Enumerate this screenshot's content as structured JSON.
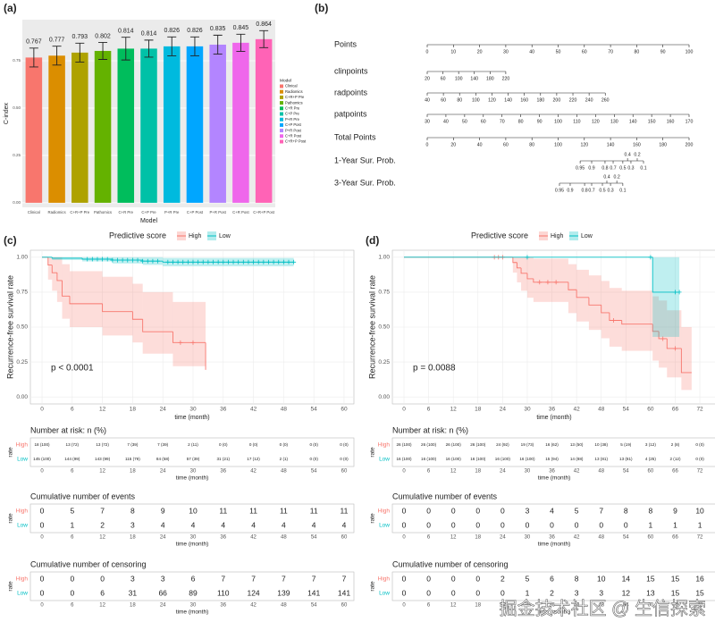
{
  "chart_data": [
    {
      "type": "bar",
      "label": "(a)",
      "xlabel": "Model",
      "ylabel": "C-index",
      "legend_title": "Model",
      "categories": [
        "Clinical",
        "Radiomics",
        "C+R+P Pre",
        "Pathomics",
        "C+R Pre",
        "C+P Pre",
        "P+R Pre",
        "C+P Post",
        "P+R Post",
        "C+R Post",
        "C+R+P Post"
      ],
      "values": [
        0.767,
        0.777,
        0.793,
        0.802,
        0.814,
        0.814,
        0.826,
        0.826,
        0.835,
        0.845,
        0.864
      ],
      "errors": [
        0.05,
        0.05,
        0.05,
        0.045,
        0.06,
        0.045,
        0.05,
        0.05,
        0.05,
        0.045,
        0.045
      ],
      "colors": [
        "#F8766D",
        "#DB8E00",
        "#AEA200",
        "#64B200",
        "#00BD5C",
        "#00C1A7",
        "#00BADE",
        "#00A6FF",
        "#B385FF",
        "#EF67EB",
        "#FF63B6"
      ],
      "ylim": [
        -0.024,
        0.967
      ],
      "yticks": [
        {
          "value": 0,
          "label": "0.00"
        },
        0.25,
        {
          "value": 0.5,
          "label": "0.50"
        },
        0.75
      ]
    },
    {
      "type": "nomogram",
      "label": "(b)",
      "rows": [
        {
          "name": "Points",
          "ticks": [
            0,
            10,
            20,
            30,
            40,
            50,
            60,
            70,
            80,
            90,
            100
          ]
        },
        {
          "name": "clinpoints",
          "ticks": [
            20,
            60,
            100,
            140,
            180,
            220
          ],
          "at": [
            0,
            6,
            12,
            18,
            24,
            30
          ]
        },
        {
          "name": "radpoints",
          "ticks": [
            40,
            60,
            80,
            100,
            120,
            140,
            160,
            180,
            200,
            220,
            240,
            260
          ],
          "at": [
            0,
            6.18,
            12.36,
            18.55,
            24.73,
            30.91,
            37.09,
            43.27,
            49.45,
            55.64,
            61.82,
            68
          ]
        },
        {
          "name": "patpoints",
          "ticks": [
            30,
            40,
            50,
            60,
            70,
            80,
            90,
            100,
            110,
            120,
            130,
            140,
            150,
            160,
            170
          ],
          "at": [
            0,
            7.14,
            14.29,
            21.43,
            28.57,
            35.71,
            42.86,
            50,
            57.14,
            64.29,
            71.43,
            78.57,
            85.71,
            92.86,
            100
          ]
        },
        {
          "name": "Total Points",
          "ticks": [
            0,
            20,
            40,
            60,
            80,
            100,
            120,
            140,
            160,
            180,
            200
          ],
          "at": [
            0,
            10,
            20,
            30,
            40,
            50,
            60,
            70,
            80,
            90,
            100
          ]
        },
        {
          "name": "1-Year Sur. Prob.",
          "ticks": [
            0.95,
            0.9,
            0.8,
            0.7,
            0.5,
            0.4,
            0.3,
            0.2,
            0.1
          ],
          "at": [
            58.4,
            62.8,
            67.9,
            71,
            74.7,
            76.5,
            77.8,
            80.2,
            82.6
          ],
          "above": [
            false,
            false,
            false,
            false,
            false,
            true,
            false,
            true,
            false
          ]
        },
        {
          "name": "3-Year Sur. Prob.",
          "ticks": [
            0.95,
            0.9,
            0.8,
            0.7,
            0.5,
            0.4,
            0.3,
            0.2,
            0.1
          ],
          "at": [
            50.5,
            54.6,
            60.1,
            62.8,
            66.9,
            68.6,
            70,
            72.4,
            74.7
          ],
          "above": [
            false,
            false,
            false,
            false,
            false,
            true,
            false,
            true,
            false
          ]
        }
      ]
    },
    {
      "type": "km",
      "label": "(c)",
      "legend_title": "Predictive score",
      "ylabel": "Recurrence-free survival rate",
      "xlabel": "time (month)",
      "annotation": "p < 0.0001",
      "xlim": [
        -2.31,
        61.96
      ],
      "ylim": [
        -0.05,
        1.05
      ],
      "xticks": [
        0,
        6,
        12,
        18,
        24,
        30,
        36,
        42,
        48,
        54,
        60
      ],
      "yticks": [
        {
          "value": 0,
          "label": "0.00"
        },
        0.25,
        {
          "value": 0.5,
          "label": "0.50"
        },
        0.75,
        {
          "value": 1,
          "label": "1.00"
        }
      ],
      "series": [
        {
          "name": "High",
          "color": "#F8766D",
          "x": [
            0,
            1.2,
            2,
            3,
            4,
            5.5,
            12,
            18,
            20,
            26,
            32.5
          ],
          "y": [
            1,
            0.944,
            0.889,
            0.833,
            0.722,
            0.667,
            0.611,
            0.556,
            0.467,
            0.389,
            0.194
          ],
          "lower": [
            1,
            0.84,
            0.76,
            0.68,
            0.56,
            0.5,
            0.44,
            0.39,
            0.31,
            0.22,
            0.2
          ],
          "upper": [
            1,
            1,
            1,
            1,
            0.95,
            0.9,
            0.86,
            0.81,
            0.75,
            0.68,
            0.6
          ],
          "censor": [
            27.5,
            30
          ]
        },
        {
          "name": "Low",
          "color": "#00BFC4",
          "x": [
            0,
            2,
            8,
            14,
            20,
            24
          ],
          "y": [
            1,
            0.993,
            0.986,
            0.979,
            0.972,
            0.965
          ],
          "lower": [
            1,
            0.98,
            0.97,
            0.955,
            0.945,
            0.935
          ],
          "upper": [
            1,
            1,
            1,
            1,
            1,
            0.995
          ],
          "end": 50,
          "censor": [
            9,
            10,
            11,
            12,
            13,
            14,
            15,
            16,
            17,
            18,
            19,
            20,
            21,
            22,
            23,
            25,
            26,
            27,
            28,
            29,
            30,
            31,
            32,
            33,
            34,
            35,
            36,
            37,
            38,
            39,
            40,
            41,
            42,
            43,
            44,
            45,
            46,
            47,
            48,
            49,
            50
          ]
        }
      ],
      "tables": [
        {
          "title": "Number at risk: n (%)",
          "axis_label": "rate",
          "rows": [
            [
              "18 (100)",
              "13 (72)",
              "13 (72)",
              "7 (39)",
              "7 (39)",
              "2 (11)",
              "0 (0)",
              "0 (0)",
              "0 (0)",
              "0 (0)",
              "0 (0)"
            ],
            [
              "145 (100)",
              "144 (99)",
              "143 (99)",
              "115 (79)",
              "84 (58)",
              "57 (39)",
              "31 (21)",
              "17 (12)",
              "2 (1)",
              "0 (0)",
              "0 (0)"
            ]
          ]
        },
        {
          "title": "Cumulative number of events",
          "axis_label": "rate",
          "rows": [
            [
              0,
              5,
              7,
              8,
              9,
              10,
              11,
              11,
              11,
              11,
              11
            ],
            [
              0,
              1,
              2,
              3,
              4,
              4,
              4,
              4,
              4,
              4,
              4
            ]
          ]
        },
        {
          "title": "Cumulative number of censoring",
          "axis_label": "rate",
          "rows": [
            [
              0,
              0,
              0,
              3,
              3,
              6,
              7,
              7,
              7,
              7,
              7
            ],
            [
              0,
              0,
              6,
              31,
              66,
              89,
              110,
              124,
              139,
              141,
              141
            ]
          ]
        }
      ]
    },
    {
      "type": "km",
      "label": "(d)",
      "legend_title": "Predictive score",
      "ylabel": "Recurrence-free survival rate",
      "xlabel": "time (month)",
      "annotation": "p = 0.0088",
      "xlim": [
        -2.83,
        75.9
      ],
      "ylim": [
        -0.05,
        1.05
      ],
      "xticks": [
        0,
        6,
        12,
        18,
        24,
        30,
        36,
        42,
        48,
        54,
        60,
        66,
        72
      ],
      "yticks": [
        {
          "value": 0,
          "label": "0.00"
        },
        0.25,
        {
          "value": 0.5,
          "label": "0.50"
        },
        0.75,
        {
          "value": 1,
          "label": "1.00"
        }
      ],
      "series": [
        {
          "name": "High",
          "color": "#F8766D",
          "x": [
            0,
            26.5,
            27.5,
            28.5,
            30,
            31.5,
            40,
            42,
            45,
            48,
            50,
            53,
            60.5,
            62,
            64,
            67.5
          ],
          "y": [
            1,
            0.962,
            0.923,
            0.885,
            0.846,
            0.821,
            0.767,
            0.712,
            0.658,
            0.603,
            0.548,
            0.521,
            0.469,
            0.417,
            0.347,
            0.174
          ],
          "lower": [
            1,
            0.89,
            0.82,
            0.76,
            0.71,
            0.68,
            0.6,
            0.54,
            0.48,
            0.42,
            0.36,
            0.33,
            0.26,
            0.21,
            0.14,
            0.05
          ],
          "upper": [
            1,
            1,
            1,
            1,
            1,
            0.99,
            0.95,
            0.91,
            0.87,
            0.83,
            0.78,
            0.76,
            0.72,
            0.69,
            0.62,
            0.5
          ],
          "end": 70,
          "censor": [
            22,
            23,
            24,
            33,
            35,
            37,
            51,
            63,
            66
          ]
        },
        {
          "name": "Low",
          "color": "#00BFC4",
          "x": [
            0,
            60.5
          ],
          "y": [
            1,
            0.75
          ],
          "lower": [
            1,
            0.43
          ],
          "upper": [
            1,
            1
          ],
          "end": 67,
          "censor": [
            30,
            60,
            66,
            67
          ]
        }
      ],
      "tables": [
        {
          "title": "Number at risk: n (%)",
          "axis_label": "rate",
          "rows": [
            [
              "26 (100)",
              "26 (100)",
              "26 (100)",
              "26 (100)",
              "24 (92)",
              "19 (73)",
              "16 (62)",
              "13 (50)",
              "10 (38)",
              "5 (19)",
              "3 (12)",
              "2 (8)",
              "0 (0)"
            ],
            [
              "16 (100)",
              "16 (100)",
              "16 (100)",
              "16 (100)",
              "16 (100)",
              "16 (100)",
              "15 (94)",
              "14 (88)",
              "13 (81)",
              "13 (81)",
              "4 (25)",
              "2 (12)",
              "0 (0)"
            ]
          ]
        },
        {
          "title": "Cumulative number of events",
          "axis_label": "rate",
          "rows": [
            [
              0,
              0,
              0,
              0,
              0,
              3,
              4,
              5,
              7,
              8,
              8,
              9,
              10
            ],
            [
              0,
              0,
              0,
              0,
              0,
              0,
              0,
              0,
              0,
              0,
              1,
              1,
              1
            ]
          ]
        },
        {
          "title": "Cumulative number of censoring",
          "axis_label": "rate",
          "rows": [
            [
              0,
              0,
              0,
              0,
              2,
              5,
              6,
              8,
              10,
              14,
              15,
              15,
              16
            ],
            [
              0,
              0,
              0,
              0,
              0,
              1,
              2,
              3,
              3,
              12,
              13,
              15,
              15
            ]
          ]
        }
      ]
    }
  ],
  "watermark": "掘金技术社区 @ 生信探索"
}
